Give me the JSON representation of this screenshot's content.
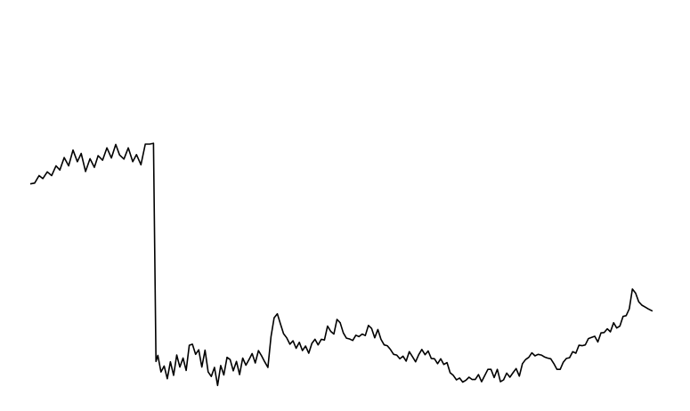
{
  "chart_data": {
    "type": "line",
    "title": "",
    "xlabel": "",
    "ylabel": "",
    "grid": false,
    "legend": "none",
    "xlim": [
      0,
      100
    ],
    "ylim": [
      0,
      100
    ],
    "series": [
      {
        "color": "#000000",
        "points": [
          [
            0.0,
            60.5
          ],
          [
            0.7,
            60.7
          ],
          [
            1.4,
            62.7
          ],
          [
            2.0,
            61.9
          ],
          [
            2.7,
            63.7
          ],
          [
            3.4,
            62.7
          ],
          [
            4.1,
            65.3
          ],
          [
            4.7,
            64.2
          ],
          [
            5.4,
            67.5
          ],
          [
            6.1,
            65.3
          ],
          [
            6.8,
            69.5
          ],
          [
            7.5,
            66.4
          ],
          [
            8.1,
            68.6
          ],
          [
            8.8,
            63.8
          ],
          [
            9.5,
            67.2
          ],
          [
            10.2,
            64.9
          ],
          [
            10.8,
            68.0
          ],
          [
            11.5,
            66.8
          ],
          [
            12.2,
            70.1
          ],
          [
            12.9,
            67.4
          ],
          [
            13.6,
            71.0
          ],
          [
            14.2,
            68.2
          ],
          [
            14.9,
            67.1
          ],
          [
            15.6,
            70.1
          ],
          [
            16.3,
            66.4
          ],
          [
            16.9,
            68.3
          ],
          [
            17.6,
            65.6
          ],
          [
            18.3,
            71.1
          ],
          [
            19.0,
            71.1
          ],
          [
            19.6,
            71.3
          ],
          [
            19.6,
            71.3
          ],
          [
            20.0,
            13.2
          ],
          [
            20.3,
            14.8
          ],
          [
            20.8,
            10.4
          ],
          [
            21.3,
            12.0
          ],
          [
            21.8,
            8.6
          ],
          [
            22.3,
            13.1
          ],
          [
            22.8,
            9.5
          ],
          [
            23.3,
            14.9
          ],
          [
            23.8,
            11.7
          ],
          [
            24.3,
            14.1
          ],
          [
            24.8,
            10.8
          ],
          [
            25.3,
            17.5
          ],
          [
            25.8,
            17.8
          ],
          [
            26.3,
            15.1
          ],
          [
            26.8,
            16.3
          ],
          [
            27.3,
            11.7
          ],
          [
            27.8,
            16.2
          ],
          [
            28.3,
            10.4
          ],
          [
            28.8,
            9.2
          ],
          [
            29.3,
            11.6
          ],
          [
            29.8,
            6.8
          ],
          [
            30.3,
            12.1
          ],
          [
            30.8,
            9.6
          ],
          [
            31.3,
            14.3
          ],
          [
            31.8,
            13.7
          ],
          [
            32.3,
            10.7
          ],
          [
            32.8,
            13.2
          ],
          [
            33.3,
            9.7
          ],
          [
            33.8,
            14.1
          ],
          [
            34.3,
            12.2
          ],
          [
            34.8,
            13.7
          ],
          [
            35.3,
            15.3
          ],
          [
            35.8,
            12.8
          ],
          [
            36.3,
            16.1
          ],
          [
            36.8,
            14.7
          ],
          [
            37.3,
            13.1
          ],
          [
            37.8,
            11.6
          ],
          [
            38.3,
            19.8
          ],
          [
            38.8,
            24.8
          ],
          [
            39.3,
            25.9
          ],
          [
            39.8,
            23.2
          ],
          [
            40.3,
            20.6
          ],
          [
            40.8,
            19.5
          ],
          [
            41.3,
            17.8
          ],
          [
            41.8,
            18.7
          ],
          [
            42.3,
            16.7
          ],
          [
            42.8,
            18.3
          ],
          [
            43.3,
            16.1
          ],
          [
            43.8,
            17.3
          ],
          [
            44.3,
            15.4
          ],
          [
            44.8,
            18.0
          ],
          [
            45.3,
            19.1
          ],
          [
            45.8,
            17.6
          ],
          [
            46.3,
            19.1
          ],
          [
            46.8,
            18.9
          ],
          [
            47.3,
            22.6
          ],
          [
            47.8,
            21.2
          ],
          [
            48.3,
            20.5
          ],
          [
            48.8,
            24.4
          ],
          [
            49.3,
            23.5
          ],
          [
            49.8,
            20.8
          ],
          [
            50.3,
            19.4
          ],
          [
            50.8,
            19.2
          ],
          [
            51.3,
            18.8
          ],
          [
            51.8,
            20.2
          ],
          [
            52.3,
            19.8
          ],
          [
            52.8,
            20.5
          ],
          [
            53.3,
            20.1
          ],
          [
            53.8,
            22.8
          ],
          [
            54.3,
            22.0
          ],
          [
            54.8,
            19.5
          ],
          [
            55.3,
            21.7
          ],
          [
            55.8,
            19.1
          ],
          [
            56.3,
            17.6
          ],
          [
            56.8,
            17.4
          ],
          [
            57.3,
            16.4
          ],
          [
            57.8,
            15.1
          ],
          [
            58.3,
            14.9
          ],
          [
            58.8,
            13.9
          ],
          [
            59.3,
            14.6
          ],
          [
            59.8,
            13.3
          ],
          [
            60.3,
            15.8
          ],
          [
            60.8,
            14.5
          ],
          [
            61.3,
            13.1
          ],
          [
            61.8,
            15.0
          ],
          [
            62.3,
            16.4
          ],
          [
            62.8,
            15.0
          ],
          [
            63.3,
            16.0
          ],
          [
            63.8,
            14.0
          ],
          [
            64.3,
            13.9
          ],
          [
            64.8,
            12.6
          ],
          [
            65.3,
            13.9
          ],
          [
            65.8,
            12.4
          ],
          [
            66.3,
            12.9
          ],
          [
            66.8,
            10.2
          ],
          [
            67.3,
            9.5
          ],
          [
            67.8,
            8.3
          ],
          [
            68.3,
            8.8
          ],
          [
            68.8,
            7.7
          ],
          [
            69.3,
            8.2
          ],
          [
            69.8,
            9.0
          ],
          [
            70.3,
            8.4
          ],
          [
            70.8,
            8.4
          ],
          [
            71.3,
            9.7
          ],
          [
            71.8,
            7.8
          ],
          [
            72.3,
            9.4
          ],
          [
            72.8,
            11.1
          ],
          [
            73.3,
            11.1
          ],
          [
            73.8,
            8.9
          ],
          [
            74.3,
            11.1
          ],
          [
            74.8,
            7.8
          ],
          [
            75.3,
            8.3
          ],
          [
            75.8,
            10.1
          ],
          [
            76.3,
            9.0
          ],
          [
            76.8,
            10.2
          ],
          [
            77.3,
            11.3
          ],
          [
            77.8,
            9.3
          ],
          [
            78.3,
            12.6
          ],
          [
            78.8,
            13.7
          ],
          [
            79.3,
            14.3
          ],
          [
            79.8,
            15.5
          ],
          [
            80.3,
            14.7
          ],
          [
            80.8,
            15.1
          ],
          [
            81.3,
            14.9
          ],
          [
            81.8,
            14.4
          ],
          [
            82.3,
            14.1
          ],
          [
            82.8,
            13.9
          ],
          [
            83.3,
            12.6
          ],
          [
            83.8,
            11.1
          ],
          [
            84.3,
            11.1
          ],
          [
            84.8,
            13.0
          ],
          [
            85.3,
            14.0
          ],
          [
            85.8,
            14.2
          ],
          [
            86.3,
            15.8
          ],
          [
            86.8,
            15.4
          ],
          [
            87.3,
            17.5
          ],
          [
            87.8,
            17.4
          ],
          [
            88.3,
            17.6
          ],
          [
            88.8,
            19.3
          ],
          [
            89.3,
            19.6
          ],
          [
            89.8,
            19.9
          ],
          [
            90.3,
            18.4
          ],
          [
            90.8,
            20.8
          ],
          [
            91.3,
            20.9
          ],
          [
            91.8,
            21.9
          ],
          [
            92.3,
            21.1
          ],
          [
            92.8,
            23.5
          ],
          [
            93.3,
            22.1
          ],
          [
            93.8,
            22.6
          ],
          [
            94.3,
            25.2
          ],
          [
            94.8,
            25.4
          ],
          [
            95.3,
            27.2
          ],
          [
            95.8,
            32.5
          ],
          [
            96.3,
            31.4
          ],
          [
            96.8,
            29.1
          ],
          [
            97.3,
            28.2
          ],
          [
            97.8,
            27.7
          ],
          [
            98.3,
            27.2
          ],
          [
            99.0,
            26.6
          ]
        ]
      }
    ]
  }
}
